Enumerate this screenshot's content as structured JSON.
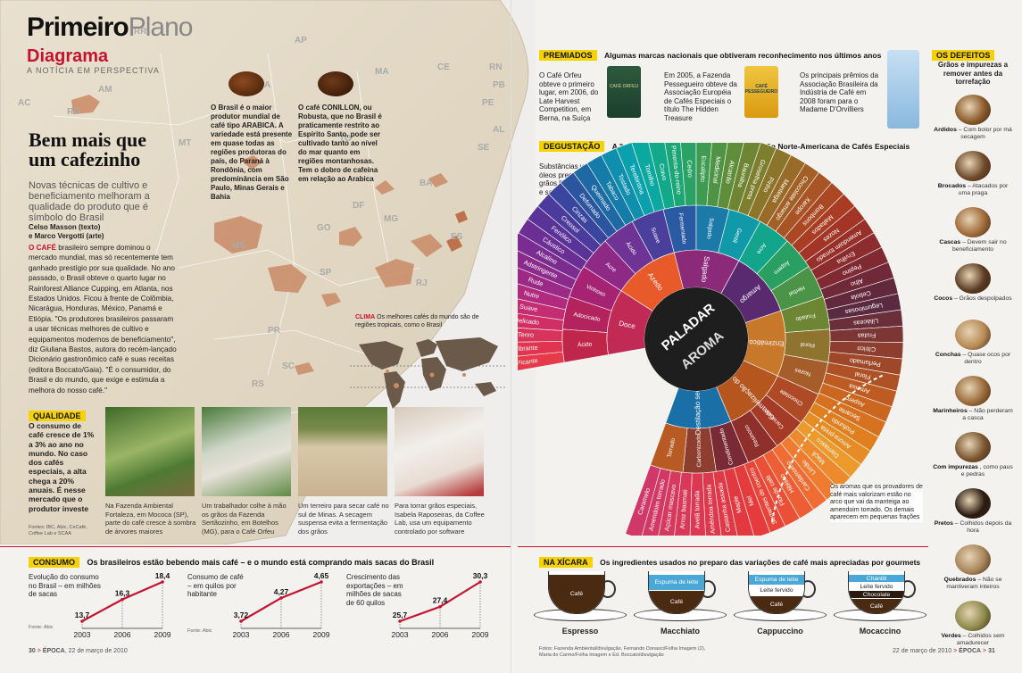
{
  "header": {
    "section_bold": "Primeiro",
    "section_light": "Plano",
    "kicker": "Diagrama",
    "kicker_sub": "A NOTÍCIA EM PERSPECTIVA"
  },
  "article": {
    "headline": "Bem mais que um cafezinho",
    "deck": "Novas técnicas de cultivo e beneficiamento melhoram a qualidade do produto que é símbolo do Brasil",
    "credits_1": "Celso Masson (texto)",
    "credits_2": "e Marco Vergotti (arte)",
    "lead": "O CAFÉ",
    "body": " brasileiro sempre dominou o mercado mundial, mas só recentemente tem ganhado prestígio por sua qualidade. No ano passado, o Brasil obteve o quarto lugar no Rainforest Alliance Cupping, em Atlanta, nos Estados Unidos. Ficou à frente de Colômbia, Nicarágua, Honduras, México, Panamá e Etiópia. \"Os produtores brasileiros passaram a usar técnicas melhores de cultivo e equipamentos modernos de beneficiamento\", diz Giuliana Bastos, autora do recém-lançado Dicionário gastronômico café e suas receitas (editora Boccato/Gaia). \"É o consumidor, do Brasil e do mundo, que exige e estimula a melhora do nosso café.\""
  },
  "map": {
    "states": [
      "RR",
      "AP",
      "AM",
      "PA",
      "MA",
      "CE",
      "RN",
      "PB",
      "PE",
      "AL",
      "SE",
      "TO",
      "BA",
      "MT",
      "RO",
      "AC",
      "GO",
      "DF",
      "MG",
      "ES",
      "MS",
      "SP",
      "RJ",
      "PR",
      "SC",
      "RS"
    ],
    "arabica_text": "O Brasil é o maior produtor mundial de café tipo ARABICA. A variedade está presente em quase todas as regiões produtoras do país, do Paraná à Rondônia, com predominância em São Paulo, Minas Gerais e Bahia",
    "conillon_text": "O café CONILLON, ou Robusta, que no Brasil é praticamente restrito ao Espírito Santo, pode ser cultivado tanto ao nível do mar quanto em regiões montanhosas. Tem o dobro de cafeína em relação ao Arabica",
    "clima_label": "CLIMA",
    "clima_text": "Os melhores cafés do mundo são de regiões tropicais, como o Brasil"
  },
  "qualidade": {
    "tag": "QUALIDADE",
    "text": "O consumo de café cresce de 1% a 3% ao ano no mundo. No caso dos cafés especiais, a alta chega a 20% anuais. É nesse mercado que o produtor investe",
    "fontes": "Fontes: IBC, Abic, CeCafé, Coffee Lab e SCAA"
  },
  "photos": [
    {
      "caption": "Na Fazenda Ambiental Fortaleza, em Mococa (SP), parte do café cresce à sombra de árvores maiores"
    },
    {
      "caption": "Um trabalhador colhe à mão os grãos da Fazenda Sertãozinho, em Botelhos (MG), para o Café Orfeu"
    },
    {
      "caption": "Um terreiro para secar café no sul de Minas. A secagem suspensa evita a fermentação dos grãos"
    },
    {
      "caption": "Para torrar grãos especiais, Isabela Raposeiras, da Coffee Lab, usa um equipamento controlado por software"
    }
  ],
  "consumo": {
    "tag": "CONSUMO",
    "title": "Os brasileiros estão bebendo mais café – e o mundo está comprando mais sacas do Brasil",
    "charts": [
      {
        "label": "Evolução do consumo no Brasil – em milhões de sacas",
        "fonte": "Fonte: Abic",
        "x": [
          "2003",
          "2006",
          "2009"
        ],
        "values": [
          13.7,
          16.3,
          18.4
        ],
        "labels": [
          "13,7",
          "16,3",
          "18,4"
        ]
      },
      {
        "label": "Consumo de café – em quilos por habitante",
        "fonte": "Fonte: Abic",
        "x": [
          "2003",
          "2006",
          "2009"
        ],
        "values": [
          3.72,
          4.27,
          4.65
        ],
        "labels": [
          "3,72",
          "4,27",
          "4,65"
        ]
      },
      {
        "label": "Crescimento das exportações – em milhões de sacas de 60 quilos",
        "fonte": "",
        "x": [
          "2003",
          "2006",
          "2009"
        ],
        "values": [
          25.7,
          27.4,
          30.3
        ],
        "labels": [
          "25,7",
          "27,4",
          "30,3"
        ]
      }
    ]
  },
  "chart_data": [
    {
      "type": "line",
      "title": "",
      "ylabel": "",
      "x": [
        "2003",
        "2006",
        "2009"
      ],
      "series": [
        {
          "values": [
            13.7,
            16.3,
            18.4
          ]
        }
      ]
    },
    {
      "type": "line",
      "title": "",
      "ylabel": "",
      "x": [
        "2003",
        "2006",
        "2009"
      ],
      "series": [
        {
          "values": [
            3.72,
            4.27,
            4.65
          ]
        }
      ]
    },
    {
      "type": "line",
      "title": "",
      "ylabel": "",
      "x": [
        "2003",
        "2006",
        "2009"
      ],
      "series": [
        {
          "values": [
            25.7,
            27.4,
            30.3
          ]
        }
      ]
    }
  ],
  "premiados": {
    "tag": "PREMIADOS",
    "title": "Algumas marcas nacionais que obtiveram reconhecimento nos últimos anos",
    "items": [
      {
        "text": "O Café Orfeu obteve o primeiro lugar, em 2006, do Late Harvest Competition, em Berna, na Suíça",
        "bag_label": "CAFÉ ORFEU",
        "color": "#1b3f2b"
      },
      {
        "text": "Em 2005, a Fazenda Pessegueiro obteve da Associação Européia de Cafés Especiais o título The Hidden Treasure",
        "bag_label": "CAFÉ PESSEGUEIRO",
        "color": "#e8b021"
      },
      {
        "text": "Os principais prêmios da Associação Brasileira da Indústria de Café em 2008 foram para o Madame D'Orvilliers",
        "bag_label": "",
        "color": "#a9cde8"
      }
    ]
  },
  "degustacao": {
    "tag": "DEGUSTAÇÃO",
    "title": "A \"roda de aromas e sabores\" da Associação Norte-Americana de Cafés Especiais",
    "note_left": "Substâncias voláteis e óleos presentes nos grãos liberam aromas e sabores bons e ruins",
    "note_right": "Os aromas que os provadores de café mais valorizam estão no arco que vai da manteiga ao amendoim torrado. Os demais aparecem em pequenas frações",
    "center_top": "PALADAR",
    "center_bottom": "AROMA",
    "inner_labels": [
      "Doce",
      "Azedo",
      "Salgado",
      "Amargo",
      "Enzimático",
      "Caramelização do açúcar",
      "Destilação seca"
    ],
    "mid_labels": [
      "Ácido",
      "Adocicado",
      "Vinhoso",
      "Acre",
      "Ácido",
      "Suave",
      "Fermentado",
      "Salgado",
      "Gentil",
      "Acre",
      "Áspero",
      "Herbal",
      "Frutado",
      "Floral",
      "Nozes",
      "Chocolate",
      "Caramelo",
      "Resinoso",
      "Condimentado",
      "Carbonizado",
      "Torrado"
    ],
    "outer_labels": [
      "Picante",
      "Vibrante",
      "Tenro",
      "Delicado",
      "Suave",
      "Nutre",
      "Rude",
      "Adstringente",
      "Alcalino",
      "Cáustico",
      "Fenólico",
      "Creosol",
      "Cinzas",
      "Defumado",
      "Queimado",
      "Tabaco",
      "Tostado",
      "Terebintina",
      "Tomilho",
      "Cravo",
      "Pimenta-do-reino",
      "Cedro",
      "Eucalipto",
      "Medicinal",
      "Alcatrão",
      "Baunilha",
      "Groselha preta",
      "Pinho",
      "Manteiga",
      "Chocolate amargo",
      "Xarope",
      "Bombons",
      "Maltados",
      "Nozes",
      "Amendoim torrado",
      "Ervilha",
      "Pepino",
      "Alho",
      "Cebola",
      "Leguminosas",
      "Liliáceas",
      "Frutas",
      "Cítrico",
      "Perfumado",
      "Floral",
      "Ameixa",
      "Aspero",
      "Secante",
      "Profundo",
      "Amora-preta",
      "Damasco",
      "Maçã",
      "Limão",
      "Cardamomo",
      "Hibisco",
      "Flor de café",
      "Sementes de coentro",
      "Mel",
      "Maple",
      "Castanha assada",
      "Amêndoa torrada",
      "Avelã torrada",
      "Arroz basmati",
      "Açúcar mascavo",
      "Amendoim torrado",
      "Caramelo"
    ]
  },
  "defeitos": {
    "tag": "OS DEFEITOS",
    "title": "Grãos e impurezas a remover antes da torrefação",
    "items": [
      {
        "name": "Ardidos",
        "desc": "– Com bolor por má secagem",
        "color": "#8a5a2b"
      },
      {
        "name": "Brocados",
        "desc": "– Atacados por uma praga",
        "color": "#6e4a2a"
      },
      {
        "name": "Cascas",
        "desc": "– Devem sair no beneficiamento",
        "color": "#a06a3a"
      },
      {
        "name": "Cocos",
        "desc": "– Grãos despolpados",
        "color": "#5a3a22"
      },
      {
        "name": "Conchas",
        "desc": "– Quase ocos por dentro",
        "color": "#b98a55"
      },
      {
        "name": "Marinheiros",
        "desc": "– Não perderam a casca",
        "color": "#9a6a3a"
      },
      {
        "name": "Com impurezas",
        "desc": ", como paus e pedras",
        "color": "#7a5530"
      },
      {
        "name": "Pretos",
        "desc": "– Colhidos depois da hora",
        "color": "#2a1a10"
      },
      {
        "name": "Quebrados",
        "desc": "– Não se mantiveram inteiros",
        "color": "#a8845a"
      },
      {
        "name": "Verdes",
        "desc": "– Colhidos sem amadurecer",
        "color": "#8d8a4a"
      }
    ]
  },
  "xicara": {
    "tag": "NA XÍCARA",
    "title": "Os ingredientes usados no preparo das variações de café mais apreciadas por gourmets",
    "cups": [
      {
        "name": "Espresso",
        "layers": [
          "Café"
        ]
      },
      {
        "name": "Macchiato",
        "layers": [
          "Espuma de leite",
          "Café"
        ]
      },
      {
        "name": "Cappuccino",
        "layers": [
          "Espuma de leite",
          "Leite fervido",
          "Café"
        ]
      },
      {
        "name": "Mocaccino",
        "layers": [
          "Chantili",
          "Leite fervido",
          "Chocolate",
          "Café"
        ]
      }
    ]
  },
  "footer": {
    "left_page": "30",
    "left_mag": "ÉPOCA",
    "left_date": "22 de março de 2010",
    "right_date": "22 de março de 2010",
    "right_mag": "ÉPOCA",
    "right_page": "31",
    "photo_credits": "Fotos: Fazenda Ambiental/divulgação, Fernando Donasci/Folha Imagem (2), Maria do Carmo/Folha Imagem e Ed. Boccato/divulgação"
  },
  "colors": {
    "accent_red": "#c4122f",
    "tag_yellow": "#f5d200",
    "coffee_brown": "#5b3216",
    "espresso": "#4b2a12",
    "milk_foam": "#4aa8d8"
  }
}
